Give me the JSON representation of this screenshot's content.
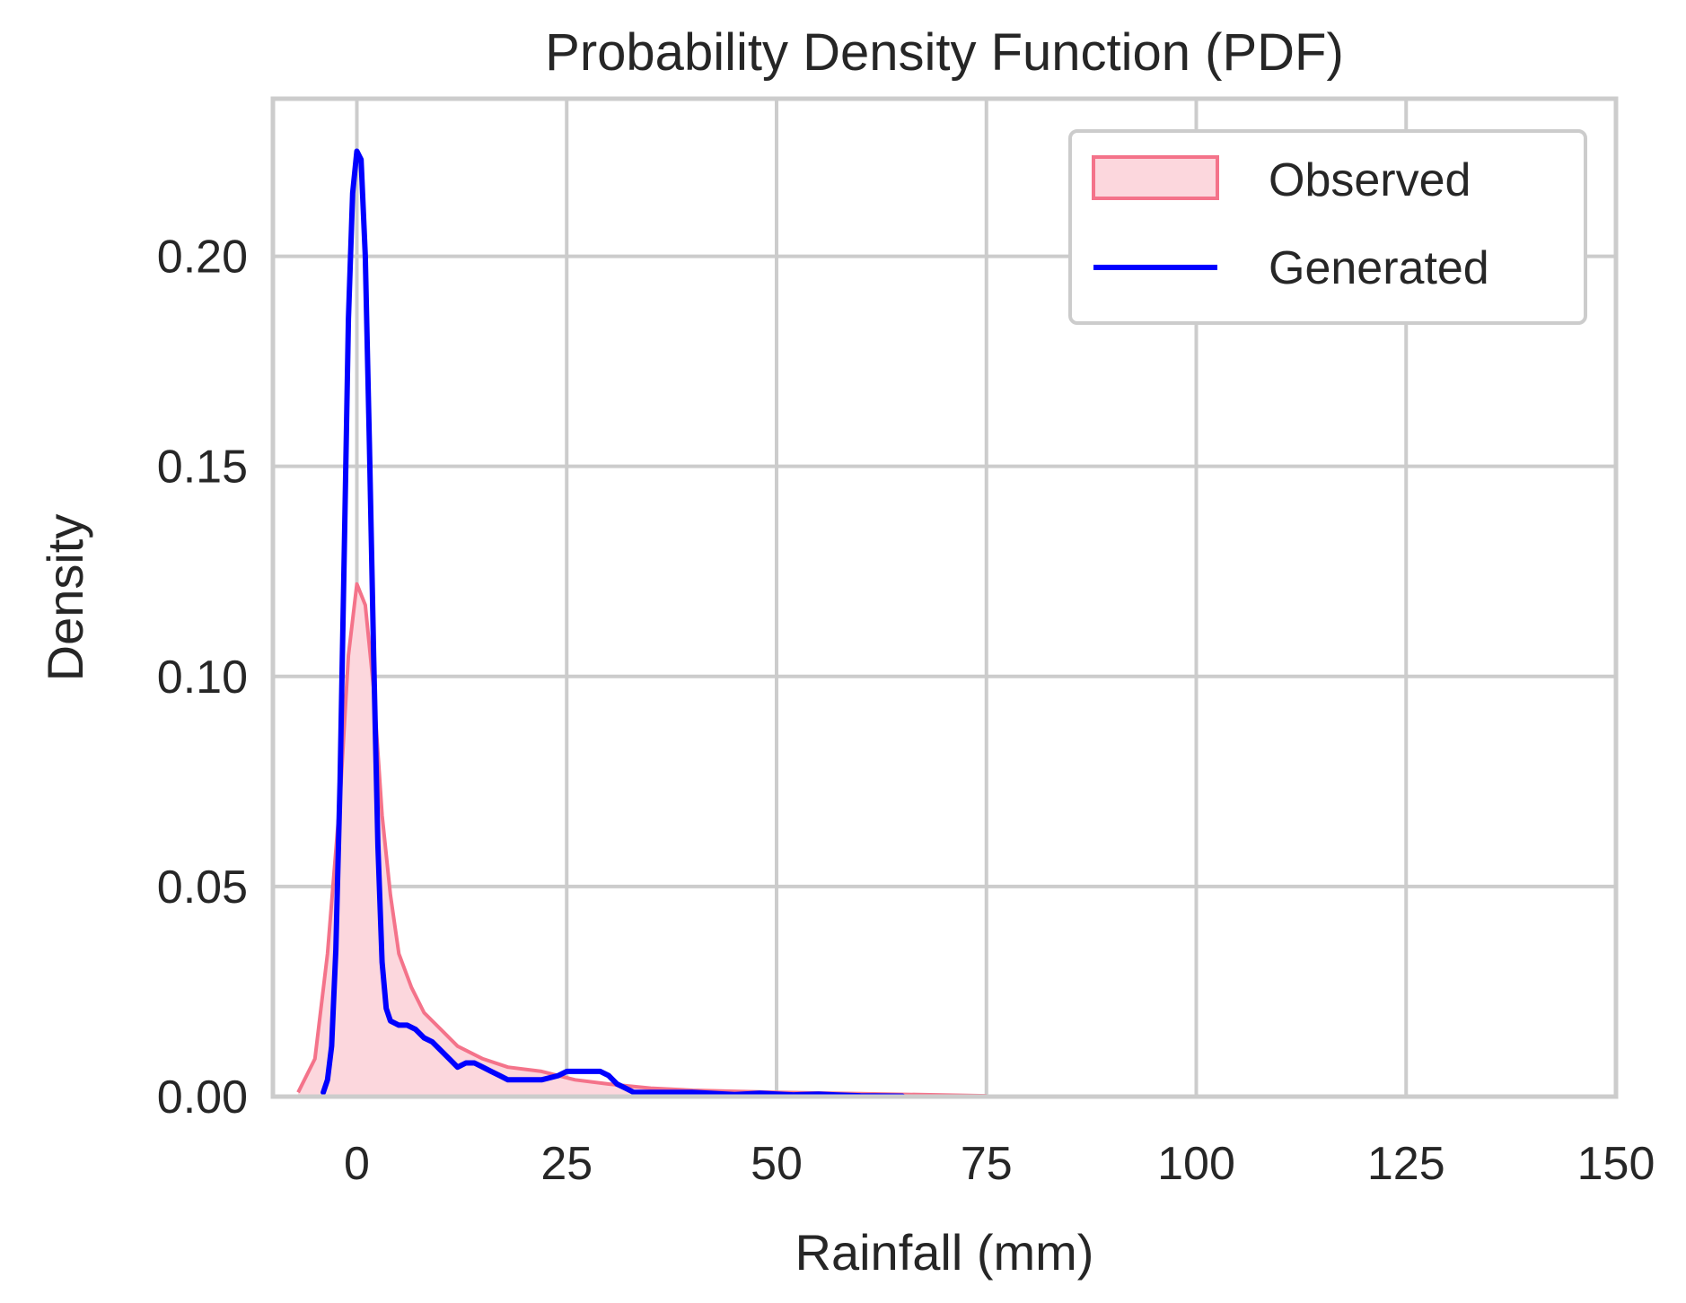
{
  "chart_data": {
    "type": "area",
    "title": "Probability Density Function (PDF)",
    "xlabel": "Rainfall (mm)",
    "ylabel": "Density",
    "xlim": [
      -10,
      150
    ],
    "ylim": [
      0,
      0.2375
    ],
    "xticks": [
      0,
      25,
      50,
      75,
      100,
      125,
      150
    ],
    "xtick_labels": [
      "0",
      "25",
      "50",
      "75",
      "100",
      "125",
      "150"
    ],
    "yticks": [
      0,
      0.05,
      0.1,
      0.15,
      0.2
    ],
    "ytick_labels": [
      "0.00",
      "0.05",
      "0.10",
      "0.15",
      "0.20"
    ],
    "grid": true,
    "legend": "top-right",
    "series": [
      {
        "name": "Observed",
        "kind": "filled-area",
        "color": "#f4738a",
        "fill": "#fcd7dd",
        "x": [
          -7,
          -5,
          -3.5,
          -2,
          -1,
          0,
          1,
          2,
          3,
          4,
          5,
          6.5,
          8,
          10,
          12,
          15,
          18,
          22,
          26,
          30,
          35,
          40,
          50,
          60,
          75
        ],
        "y": [
          0.001,
          0.009,
          0.034,
          0.071,
          0.105,
          0.122,
          0.117,
          0.097,
          0.067,
          0.048,
          0.034,
          0.026,
          0.02,
          0.016,
          0.012,
          0.009,
          0.007,
          0.006,
          0.004,
          0.003,
          0.002,
          0.0015,
          0.001,
          0.0007,
          0.0002
        ]
      },
      {
        "name": "Generated",
        "kind": "line",
        "color": "#0000ff",
        "x": [
          -4,
          -3.5,
          -3,
          -2.5,
          -2,
          -1.5,
          -1,
          -0.5,
          0,
          0.5,
          1,
          1.5,
          2,
          2.5,
          3,
          3.5,
          4,
          5,
          6,
          7,
          8,
          9,
          10,
          11,
          12,
          13,
          14,
          15,
          16,
          17,
          18,
          20,
          22,
          24,
          25,
          27,
          29,
          30,
          31,
          32,
          33,
          34,
          35,
          36,
          37,
          40,
          42,
          45,
          48,
          52,
          55,
          57,
          60,
          65
        ],
        "y": [
          0.001,
          0.004,
          0.012,
          0.035,
          0.075,
          0.13,
          0.185,
          0.215,
          0.225,
          0.223,
          0.2,
          0.155,
          0.105,
          0.06,
          0.032,
          0.021,
          0.018,
          0.017,
          0.017,
          0.016,
          0.014,
          0.013,
          0.011,
          0.009,
          0.007,
          0.008,
          0.008,
          0.007,
          0.006,
          0.005,
          0.004,
          0.004,
          0.004,
          0.005,
          0.006,
          0.006,
          0.006,
          0.005,
          0.003,
          0.002,
          0.001,
          0.001,
          0.001,
          0.001,
          0.001,
          0.001,
          0.0008,
          0.0005,
          0.0008,
          0.0004,
          0.0006,
          0.0004,
          0.0002,
          0.0001
        ]
      }
    ]
  }
}
